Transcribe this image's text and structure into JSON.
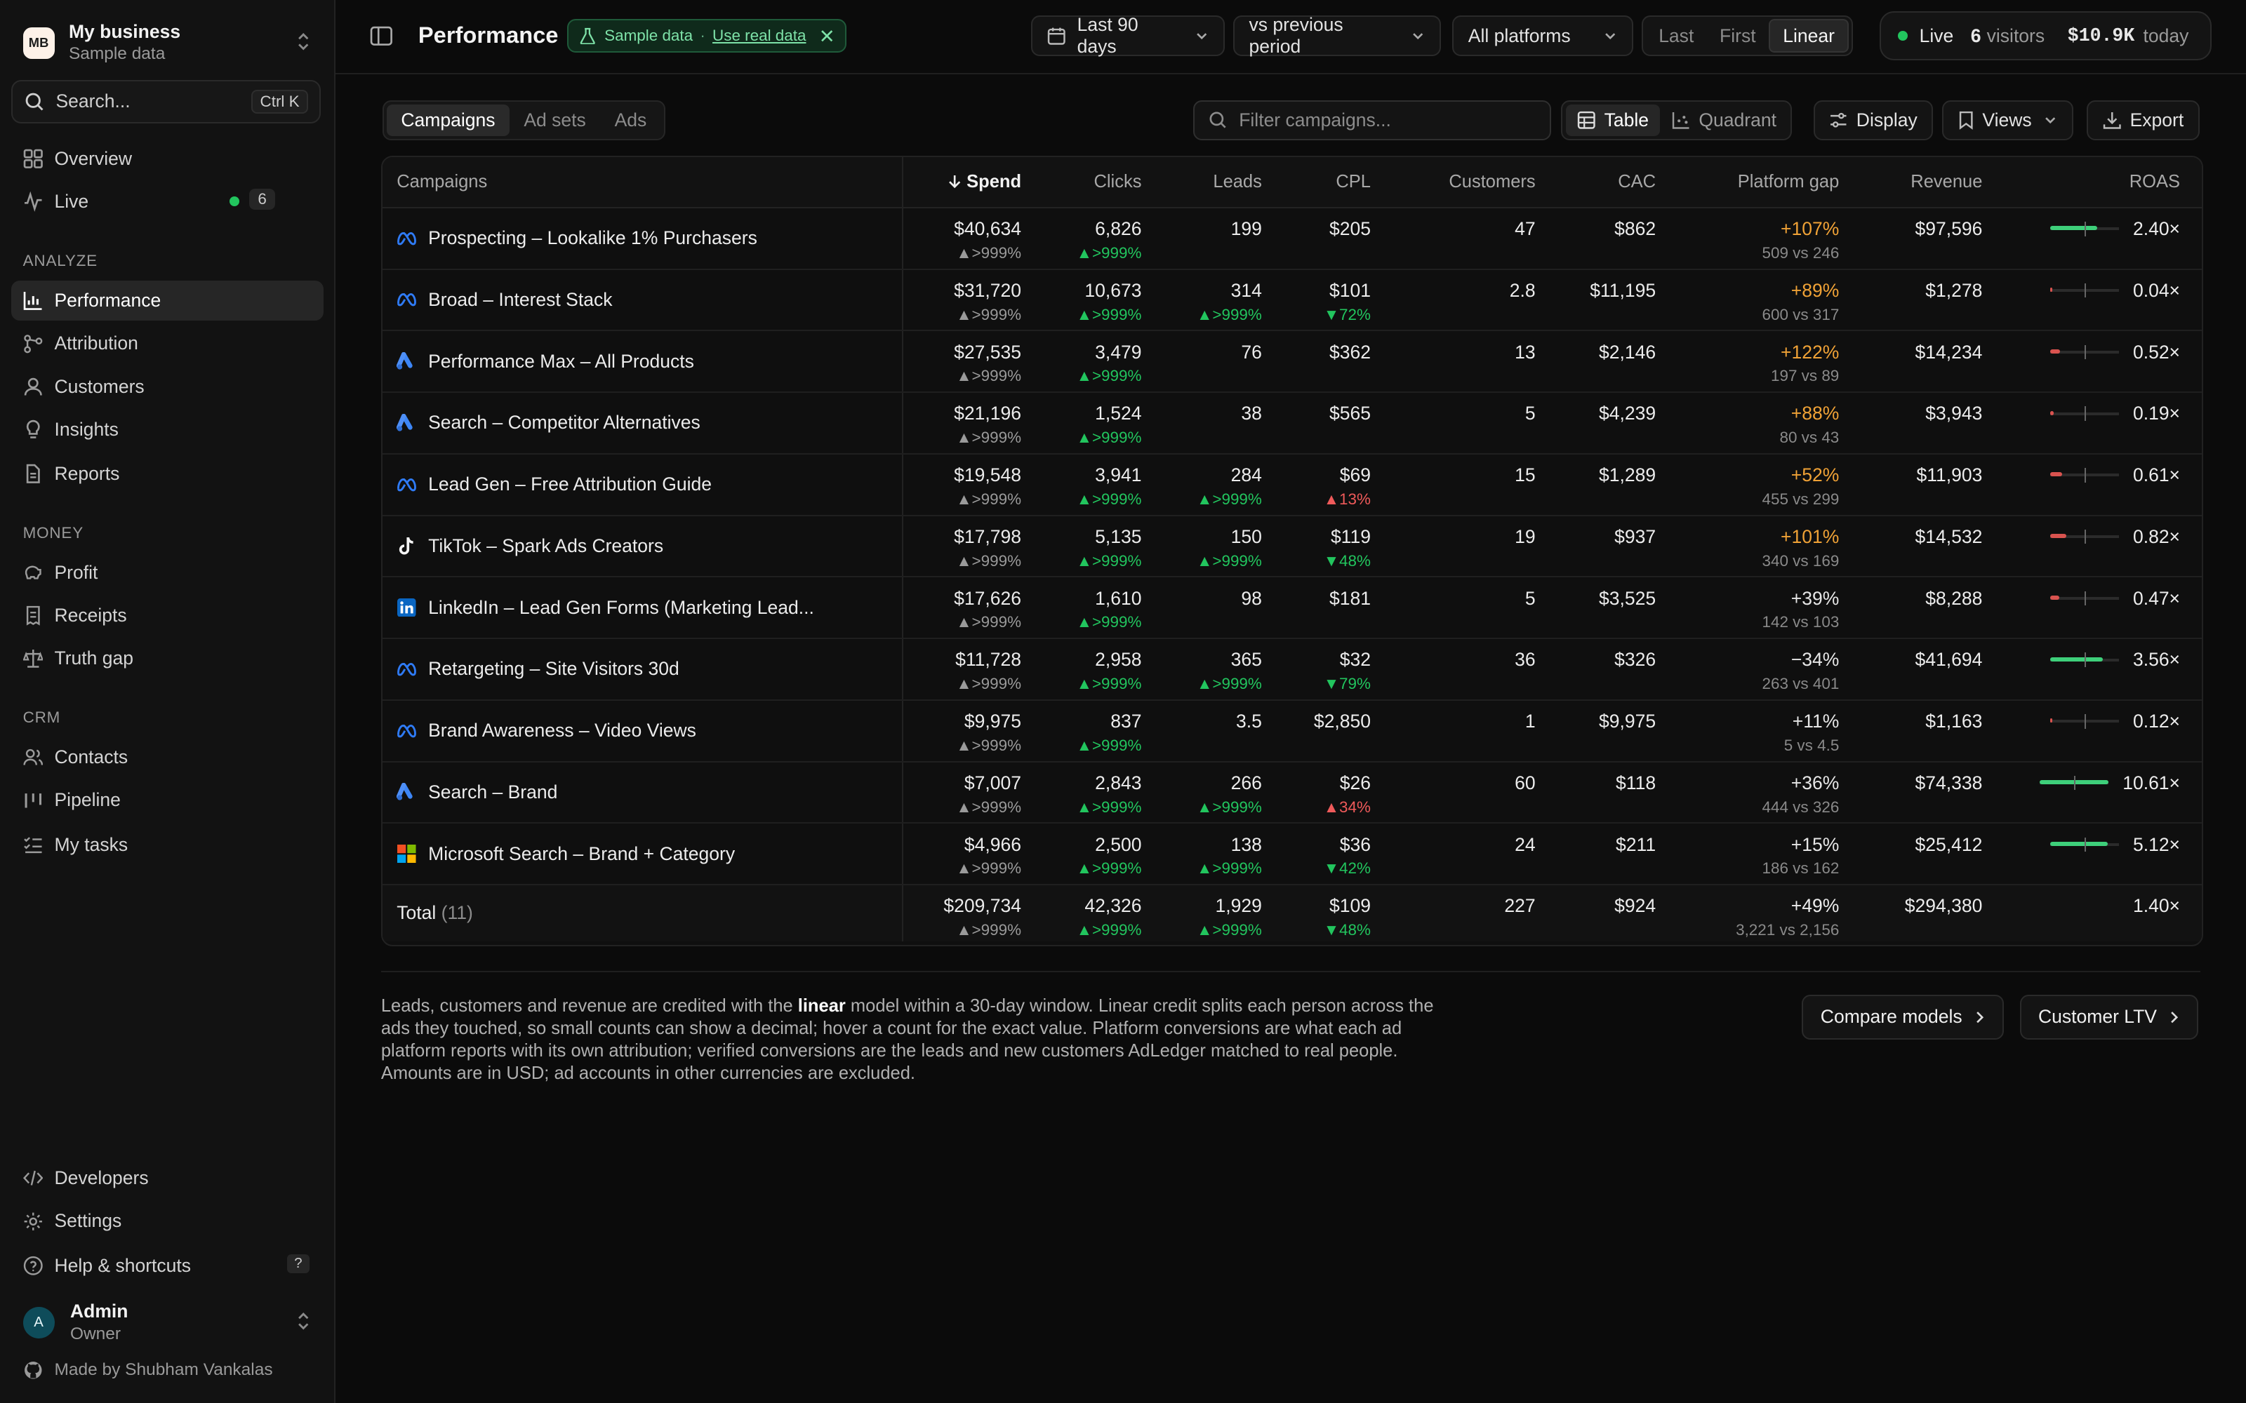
{
  "org": {
    "initials": "MB",
    "name": "My business",
    "subtitle": "Sample data"
  },
  "search": {
    "label": "Search...",
    "shortcut": "Ctrl K"
  },
  "nav": {
    "overview": "Overview",
    "live": "Live",
    "live_count": "6",
    "analyze_label": "ANALYZE",
    "performance": "Performance",
    "attribution": "Attribution",
    "customers": "Customers",
    "insights": "Insights",
    "reports": "Reports",
    "money_label": "MONEY",
    "profit": "Profit",
    "receipts": "Receipts",
    "truth_gap": "Truth gap",
    "crm_label": "CRM",
    "contacts": "Contacts",
    "pipeline": "Pipeline",
    "my_tasks": "My tasks",
    "developers": "Developers",
    "settings": "Settings",
    "help": "Help & shortcuts",
    "help_key": "?"
  },
  "user": {
    "initial": "A",
    "name": "Admin",
    "role": "Owner"
  },
  "made_by": "Made by Shubham Vankalas",
  "header": {
    "title": "Performance",
    "sample_label": "Sample data",
    "sample_sep": "·",
    "use_real": "Use real data",
    "date_range": "Last 90 days",
    "compare": "vs previous period",
    "platforms": "All platforms",
    "models": [
      "Last",
      "First",
      "Linear"
    ],
    "active_model": "Linear",
    "live_label": "Live",
    "visitors_count": "6",
    "visitors_label": "visitors",
    "revenue_today": "$10.9K",
    "today_label": "today"
  },
  "toolbar": {
    "tabs": [
      "Campaigns",
      "Ad sets",
      "Ads"
    ],
    "active_tab": "Campaigns",
    "filter_placeholder": "Filter campaigns...",
    "view_table": "Table",
    "view_quadrant": "Quadrant",
    "display": "Display",
    "views": "Views",
    "export": "Export"
  },
  "table": {
    "columns": [
      "Campaigns",
      "Spend",
      "Clicks",
      "Leads",
      "CPL",
      "Customers",
      "CAC",
      "Platform gap",
      "Revenue",
      "ROAS"
    ],
    "sorted_column": "Spend",
    "rows": [
      {
        "platform": "meta",
        "name": "Prospecting – Lookalike 1% Purchasers",
        "spend": "$40,634",
        "spend_d": ">999%",
        "clicks": "6,826",
        "clicks_d": ">999%",
        "leads": "199",
        "leads_d": "",
        "cpl": "$205",
        "cpl_d": "",
        "cpl_dir": "",
        "customers": "47",
        "cac": "$862",
        "gap": "+107%",
        "gap_sub": "509 vs 246",
        "gap_style": "orange",
        "revenue": "$97,596",
        "roas": "2.40×",
        "roas_value": 2.4
      },
      {
        "platform": "meta",
        "name": "Broad – Interest Stack",
        "spend": "$31,720",
        "spend_d": ">999%",
        "clicks": "10,673",
        "clicks_d": ">999%",
        "leads": "314",
        "leads_d": ">999%",
        "cpl": "$101",
        "cpl_d": "72%",
        "cpl_dir": "down-good",
        "customers": "2.8",
        "cac": "$11,195",
        "gap": "+89%",
        "gap_sub": "600 vs 317",
        "gap_style": "orange",
        "revenue": "$1,278",
        "roas": "0.04×",
        "roas_value": 0.04
      },
      {
        "platform": "google",
        "name": "Performance Max – All Products",
        "spend": "$27,535",
        "spend_d": ">999%",
        "clicks": "3,479",
        "clicks_d": ">999%",
        "leads": "76",
        "leads_d": "",
        "cpl": "$362",
        "cpl_d": "",
        "cpl_dir": "",
        "customers": "13",
        "cac": "$2,146",
        "gap": "+122%",
        "gap_sub": "197 vs 89",
        "gap_style": "orange",
        "revenue": "$14,234",
        "roas": "0.52×",
        "roas_value": 0.52
      },
      {
        "platform": "google",
        "name": "Search – Competitor Alternatives",
        "spend": "$21,196",
        "spend_d": ">999%",
        "clicks": "1,524",
        "clicks_d": ">999%",
        "leads": "38",
        "leads_d": "",
        "cpl": "$565",
        "cpl_d": "",
        "cpl_dir": "",
        "customers": "5",
        "cac": "$4,239",
        "gap": "+88%",
        "gap_sub": "80 vs 43",
        "gap_style": "orange",
        "revenue": "$3,943",
        "roas": "0.19×",
        "roas_value": 0.19
      },
      {
        "platform": "meta",
        "name": "Lead Gen – Free Attribution Guide",
        "spend": "$19,548",
        "spend_d": ">999%",
        "clicks": "3,941",
        "clicks_d": ">999%",
        "leads": "284",
        "leads_d": ">999%",
        "cpl": "$69",
        "cpl_d": "13%",
        "cpl_dir": "up-bad",
        "customers": "15",
        "cac": "$1,289",
        "gap": "+52%",
        "gap_sub": "455 vs 299",
        "gap_style": "orange",
        "revenue": "$11,903",
        "roas": "0.61×",
        "roas_value": 0.61
      },
      {
        "platform": "tiktok",
        "name": "TikTok – Spark Ads Creators",
        "spend": "$17,798",
        "spend_d": ">999%",
        "clicks": "5,135",
        "clicks_d": ">999%",
        "leads": "150",
        "leads_d": ">999%",
        "cpl": "$119",
        "cpl_d": "48%",
        "cpl_dir": "down-good",
        "customers": "19",
        "cac": "$937",
        "gap": "+101%",
        "gap_sub": "340 vs 169",
        "gap_style": "orange",
        "revenue": "$14,532",
        "roas": "0.82×",
        "roas_value": 0.82
      },
      {
        "platform": "linkedin",
        "name": "LinkedIn – Lead Gen Forms (Marketing Lead...",
        "spend": "$17,626",
        "spend_d": ">999%",
        "clicks": "1,610",
        "clicks_d": ">999%",
        "leads": "98",
        "leads_d": "",
        "cpl": "$181",
        "cpl_d": "",
        "cpl_dir": "",
        "customers": "5",
        "cac": "$3,525",
        "gap": "+39%",
        "gap_sub": "142 vs 103",
        "gap_style": "plain",
        "revenue": "$8,288",
        "roas": "0.47×",
        "roas_value": 0.47
      },
      {
        "platform": "meta",
        "name": "Retargeting – Site Visitors 30d",
        "spend": "$11,728",
        "spend_d": ">999%",
        "clicks": "2,958",
        "clicks_d": ">999%",
        "leads": "365",
        "leads_d": ">999%",
        "cpl": "$32",
        "cpl_d": "79%",
        "cpl_dir": "down-good",
        "customers": "36",
        "cac": "$326",
        "gap": "−34%",
        "gap_sub": "263 vs 401",
        "gap_style": "plain",
        "revenue": "$41,694",
        "roas": "3.56×",
        "roas_value": 3.56
      },
      {
        "platform": "meta",
        "name": "Brand Awareness – Video Views",
        "spend": "$9,975",
        "spend_d": ">999%",
        "clicks": "837",
        "clicks_d": ">999%",
        "leads": "3.5",
        "leads_d": "",
        "cpl": "$2,850",
        "cpl_d": "",
        "cpl_dir": "",
        "customers": "1",
        "cac": "$9,975",
        "gap": "+11%",
        "gap_sub": "5 vs 4.5",
        "gap_style": "plain",
        "revenue": "$1,163",
        "roas": "0.12×",
        "roas_value": 0.12
      },
      {
        "platform": "google",
        "name": "Search – Brand",
        "spend": "$7,007",
        "spend_d": ">999%",
        "clicks": "2,843",
        "clicks_d": ">999%",
        "leads": "266",
        "leads_d": ">999%",
        "cpl": "$26",
        "cpl_d": "34%",
        "cpl_dir": "up-bad",
        "customers": "60",
        "cac": "$118",
        "gap": "+36%",
        "gap_sub": "444 vs 326",
        "gap_style": "plain",
        "revenue": "$74,338",
        "roas": "10.61×",
        "roas_value": 10.61
      },
      {
        "platform": "microsoft",
        "name": "Microsoft Search – Brand + Category",
        "spend": "$4,966",
        "spend_d": ">999%",
        "clicks": "2,500",
        "clicks_d": ">999%",
        "leads": "138",
        "leads_d": ">999%",
        "cpl": "$36",
        "cpl_d": "42%",
        "cpl_dir": "down-good",
        "customers": "24",
        "cac": "$211",
        "gap": "+15%",
        "gap_sub": "186 vs 162",
        "gap_style": "plain",
        "revenue": "$25,412",
        "roas": "5.12×",
        "roas_value": 5.12
      }
    ],
    "total": {
      "label": "Total",
      "count": "(11)",
      "spend": "$209,734",
      "spend_d": ">999%",
      "clicks": "42,326",
      "clicks_d": ">999%",
      "leads": "1,929",
      "leads_d": ">999%",
      "cpl": "$109",
      "cpl_d": "48%",
      "customers": "227",
      "cac": "$924",
      "gap": "+49%",
      "gap_sub": "3,221 vs 2,156",
      "revenue": "$294,380",
      "roas": "1.40×"
    }
  },
  "footer": {
    "note_part1": "Leads, customers and revenue are credited with the ",
    "note_model": "linear",
    "note_part2": " model within a 30-day window. Linear credit splits each person across the ads they touched, so small counts can show a decimal; hover a count for the exact value. Platform conversions are what each ad platform reports with its own attribution; verified conversions are the leads and new customers AdLedger matched to real people. Amounts are in USD; ad accounts in other currencies are excluded.",
    "compare_models": "Compare models",
    "customer_ltv": "Customer LTV"
  },
  "colors": {
    "positive": "#22c55e",
    "negative": "#ef5a5a",
    "platform_gap_warn": "#f0a236",
    "roas_good": "#3ecf7a",
    "roas_bad": "#d9534f"
  }
}
